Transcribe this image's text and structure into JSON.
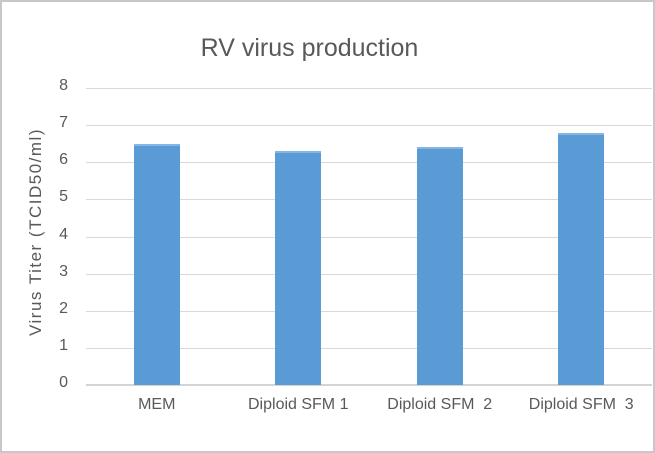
{
  "chart_data": {
    "type": "bar",
    "title": "RV virus production",
    "categories": [
      "MEM",
      "Diploid SFM 1",
      "Diploid SFM  2",
      "Diploid SFM  3"
    ],
    "values": [
      6.5,
      6.3,
      6.4,
      6.8
    ],
    "xlabel": "",
    "ylabel": "Virus Titer (TCID50/ml)",
    "ylim": [
      0,
      8
    ],
    "yticks": [
      0,
      1,
      2,
      3,
      4,
      5,
      6,
      7,
      8
    ],
    "grid": "horizontal",
    "legend": "none",
    "colors": {
      "bar": "#5B9BD5",
      "bar_top_edge": "#85B5E3",
      "gridline": "#D9D9D9",
      "axis_line": "#D4D4D4",
      "text": "#595959",
      "frame_border": "#C9C7C7",
      "background": "#FFFFFF"
    }
  }
}
